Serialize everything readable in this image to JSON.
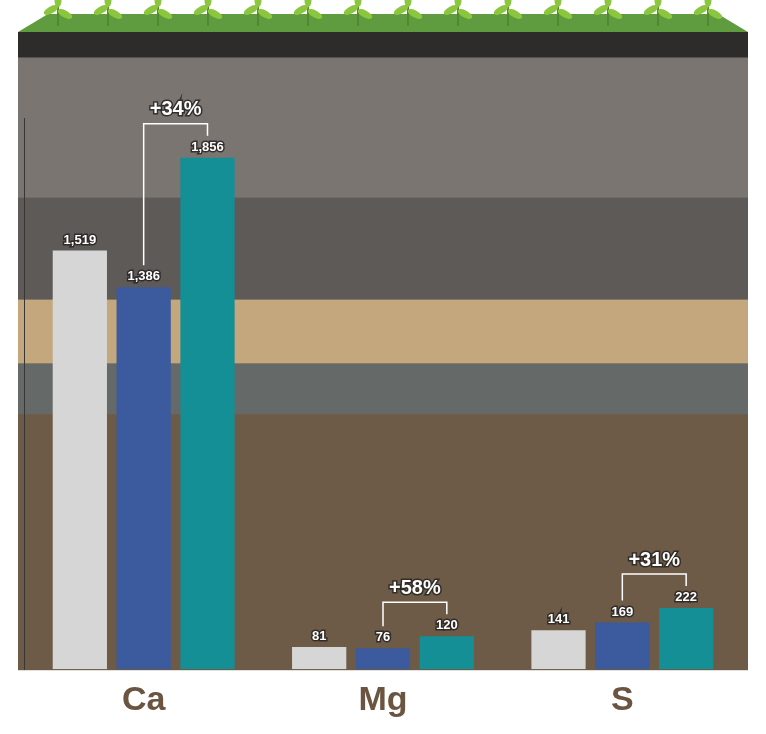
{
  "chart_data": {
    "type": "bar",
    "categories": [
      "Ca",
      "Mg",
      "S"
    ],
    "series": [
      {
        "color": "#d6d6d6",
        "values": [
          1519,
          81,
          141
        ],
        "value_labels": [
          "1,519",
          "81",
          "141"
        ]
      },
      {
        "color": "#3c5a9e",
        "values": [
          1386,
          76,
          169
        ],
        "value_labels": [
          "1,386",
          "76",
          "169"
        ]
      },
      {
        "color": "#138f95",
        "values": [
          1856,
          120,
          222
        ],
        "value_labels": [
          "1,856",
          "120",
          "222"
        ]
      }
    ],
    "ylim": [
      0,
      2000
    ],
    "tick_labels": "x",
    "grid": false,
    "data_labels": true,
    "annotations": [
      {
        "category": "Ca",
        "text": "+34%"
      },
      {
        "category": "Mg",
        "text": "+58%"
      },
      {
        "category": "S",
        "text": "+31%"
      }
    ]
  }
}
